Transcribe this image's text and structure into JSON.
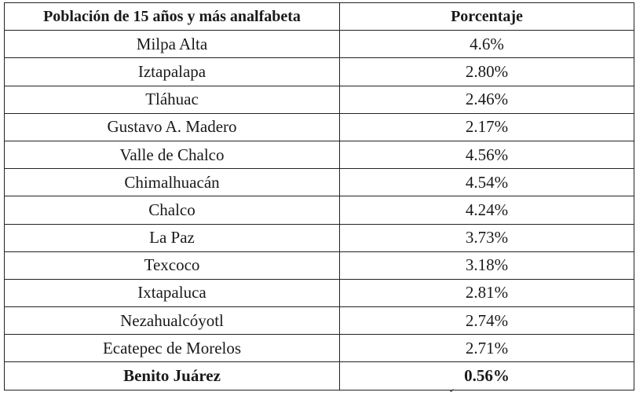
{
  "table": {
    "headers": [
      "Población de 15 años y más analfabeta",
      "Porcentaje"
    ],
    "rows": [
      {
        "municipio": "Milpa Alta",
        "porcentaje": "4.6%",
        "bold": false
      },
      {
        "municipio": "Iztapalapa",
        "porcentaje": "2.80%",
        "bold": false
      },
      {
        "municipio": "Tláhuac",
        "porcentaje": "2.46%",
        "bold": false
      },
      {
        "municipio": "Gustavo A. Madero",
        "porcentaje": "2.17%",
        "bold": false
      },
      {
        "municipio": "Valle de Chalco",
        "porcentaje": "4.56%",
        "bold": false
      },
      {
        "municipio": "Chimalhuacán",
        "porcentaje": "4.54%",
        "bold": false
      },
      {
        "municipio": "Chalco",
        "porcentaje": "4.24%",
        "bold": false
      },
      {
        "municipio": "La Paz",
        "porcentaje": "3.73%",
        "bold": false
      },
      {
        "municipio": "Texcoco",
        "porcentaje": "3.18%",
        "bold": false
      },
      {
        "municipio": "Ixtapaluca",
        "porcentaje": "2.81%",
        "bold": false
      },
      {
        "municipio": "Nezahualcóyotl",
        "porcentaje": "2.74%",
        "bold": false
      },
      {
        "municipio": "Ecatepec de Morelos",
        "porcentaje": "2.71%",
        "bold": false
      },
      {
        "municipio": "Benito Juárez",
        "porcentaje": "0.56%",
        "bold": true
      }
    ]
  }
}
